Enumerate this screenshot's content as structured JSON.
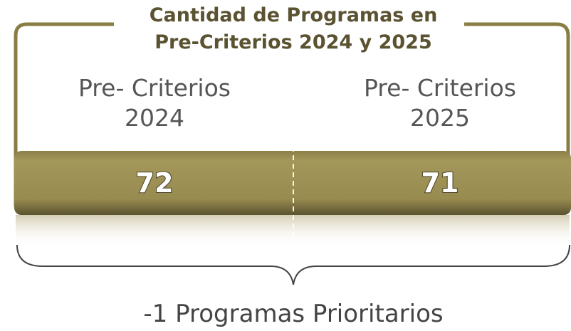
{
  "title_lines": [
    "Cantidad de Programas en",
    "Pre-Criterios 2024 y 2025"
  ],
  "columns": [
    {
      "label_lines": [
        "Pre- Criterios",
        "2024"
      ],
      "value": 72
    },
    {
      "label_lines": [
        "Pre- Criterios",
        "2025"
      ],
      "value": 71
    }
  ],
  "footer": "-1 Programas Prioritarios"
}
